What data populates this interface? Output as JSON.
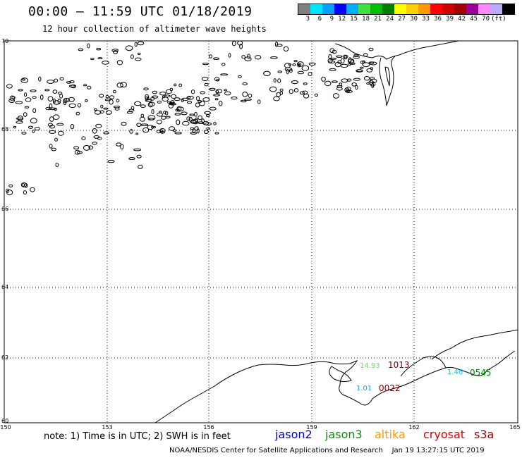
{
  "header": {
    "title": "00:00 – 11:59 UTC 01/18/2019",
    "subtitle": "12 hour collection of altimeter wave heights"
  },
  "legend": {
    "colors": [
      "#7f7f7f",
      "#00e5ff",
      "#00a0ff",
      "#0000ff",
      "#00b0ff",
      "#40e040",
      "#00c000",
      "#008000",
      "#ffff00",
      "#ffd000",
      "#ff9900",
      "#ff0000",
      "#d00000",
      "#a00000",
      "#990099",
      "#ff88ff",
      "#bbaaff",
      "#000000"
    ],
    "values": [
      "3",
      "6",
      "9",
      "12",
      "15",
      "18",
      "21",
      "24",
      "27",
      "30",
      "33",
      "36",
      "39",
      "42",
      "45",
      "70"
    ],
    "unit": "(ft)"
  },
  "map": {
    "lat_labels": [
      "70",
      "68",
      "66",
      "64",
      "62",
      "60"
    ],
    "lon_labels": [
      "150",
      "153",
      "156",
      "159",
      "162",
      "165"
    ],
    "observations": [
      {
        "value": "14.93",
        "color": "#66dd66"
      },
      {
        "value": "1013",
        "color": "#800000"
      },
      {
        "value": "1.01",
        "color": "#00aaff"
      },
      {
        "value": "0022",
        "color": "#800000"
      },
      {
        "value": "1.46",
        "color": "#00ccee"
      },
      {
        "value": "0545",
        "color": "#008000"
      }
    ]
  },
  "notes": {
    "text": "note: 1) Time is in UTC; 2) SWH is in feet"
  },
  "satellites": [
    {
      "name": "jason2",
      "color": "#0000cc"
    },
    {
      "name": "jason3",
      "color": "#009900"
    },
    {
      "name": "altika",
      "color": "#ff9900"
    },
    {
      "name": "cryosat",
      "color": "#dd0000"
    },
    {
      "name": "s3a",
      "color": "#990000"
    }
  ],
  "footer": {
    "credit": "NOAA/NESDIS Center for Satellite Applications and Research",
    "timestamp": "Jan 19 13:27:15 UTC 2019"
  }
}
